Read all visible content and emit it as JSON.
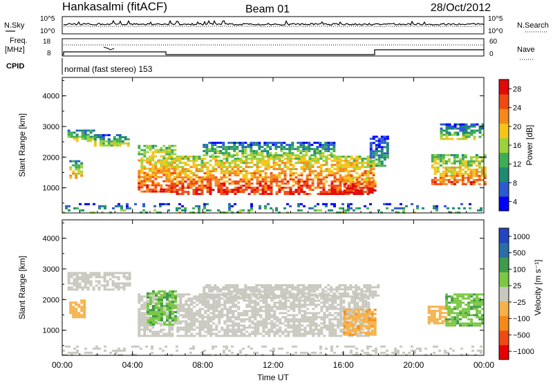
{
  "header": {
    "station": "Hankasalmi (fitACF)",
    "beam": "Beam 01",
    "date": "28/Oct/2012"
  },
  "panels": {
    "nsky_label": "N.Sky",
    "nsearch_label": "N.Search",
    "noise_ticks": {
      "top": "10^5",
      "bottom": "10^0"
    },
    "freq_label": "Freq.",
    "freq_unit": "[MHz]",
    "freq_ticks": [
      "18",
      "8"
    ],
    "nave_label": "Nave",
    "nave_ticks": [
      "60",
      "0"
    ],
    "cpid_label": "CPID",
    "cpid_text": "normal (fast stereo) 153"
  },
  "axes": {
    "xlabel": "Time UT",
    "x_ticks": [
      "00:00",
      "04:00",
      "08:00",
      "12:00",
      "16:00",
      "20:00",
      "00:00"
    ],
    "ylabel": "Slant Range [km]",
    "y_ticks": [
      "1000",
      "2000",
      "3000",
      "4000"
    ]
  },
  "colorbars": {
    "power": {
      "label": "Power [dB]",
      "ticks": [
        "4",
        "8",
        "12",
        "16",
        "20",
        "24",
        "28"
      ]
    },
    "velocity": {
      "label": "Velocity [m s⁻¹]",
      "ticks": [
        "1000",
        "500",
        "100",
        "25",
        "−25",
        "−100",
        "−500",
        "−1000"
      ]
    }
  },
  "chart_data": [
    {
      "type": "heatmap",
      "name": "Power",
      "x_range_hours": [
        0,
        24
      ],
      "y_range_km": [
        180,
        4600
      ],
      "value_range": [
        0,
        30
      ],
      "colors": [
        "#0000ff",
        "#2a5bd0",
        "#1f8a70",
        "#3fae52",
        "#9bd23b",
        "#f5c518",
        "#f58a1a",
        "#f04a14",
        "#e10a0a"
      ],
      "regions": [
        {
          "t0": 0.3,
          "t1": 1.8,
          "r0": 2500,
          "r1": 2900,
          "p": 12
        },
        {
          "t0": 1.8,
          "t1": 3.8,
          "r0": 2350,
          "r1": 2750,
          "p": 11
        },
        {
          "t0": 0.4,
          "t1": 1.1,
          "r0": 1350,
          "r1": 1900,
          "p": 14
        },
        {
          "t0": 4.3,
          "t1": 6.5,
          "r0": 900,
          "r1": 2400,
          "p": 18
        },
        {
          "t0": 6.0,
          "t1": 17.7,
          "r0": 800,
          "r1": 2050,
          "p": 20
        },
        {
          "t0": 8.0,
          "t1": 15.5,
          "r0": 2050,
          "r1": 2500,
          "p": 9
        },
        {
          "t0": 16.0,
          "t1": 17.8,
          "r0": 850,
          "r1": 1350,
          "p": 24
        },
        {
          "t0": 17.5,
          "t1": 18.5,
          "r0": 1700,
          "r1": 2700,
          "p": 6
        },
        {
          "t0": 21.0,
          "t1": 24.0,
          "r0": 1150,
          "r1": 2100,
          "p": 17
        },
        {
          "t0": 21.5,
          "t1": 24.0,
          "r0": 2600,
          "r1": 3100,
          "p": 9
        },
        {
          "t0": 0.0,
          "t1": 24.0,
          "r0": 180,
          "r1": 500,
          "p": 8
        }
      ]
    },
    {
      "type": "heatmap",
      "name": "Velocity",
      "x_range_hours": [
        0,
        24
      ],
      "y_range_km": [
        180,
        4600
      ],
      "value_range": [
        -1000,
        1000
      ],
      "colors": [
        "#e60000",
        "#f04a14",
        "#f58a1a",
        "#f5b14a",
        "#c8c8bf",
        "#7cc843",
        "#3e9b4c",
        "#2a6ea8",
        "#2246c0"
      ],
      "regions": [
        {
          "t0": 0.3,
          "t1": 3.8,
          "r0": 2350,
          "r1": 2900,
          "v": 0
        },
        {
          "t0": 4.3,
          "t1": 17.5,
          "r0": 800,
          "r1": 2200,
          "v": 0
        },
        {
          "t0": 8.0,
          "t1": 18.0,
          "r0": 2050,
          "r1": 2500,
          "v": 0
        },
        {
          "t0": 4.8,
          "t1": 6.5,
          "r0": 1200,
          "r1": 2300,
          "v": 300
        },
        {
          "t0": 16.0,
          "t1": 17.8,
          "r0": 850,
          "r1": 1700,
          "v": -300
        },
        {
          "t0": 20.8,
          "t1": 22.0,
          "r0": 1200,
          "r1": 1800,
          "v": -200
        },
        {
          "t0": 21.8,
          "t1": 24.0,
          "r0": 1150,
          "r1": 2200,
          "v": 300
        },
        {
          "t0": 0.4,
          "t1": 1.2,
          "r0": 1400,
          "r1": 2000,
          "v": -200
        },
        {
          "t0": 0.0,
          "t1": 24.0,
          "r0": 180,
          "r1": 500,
          "v": 50
        }
      ]
    }
  ]
}
